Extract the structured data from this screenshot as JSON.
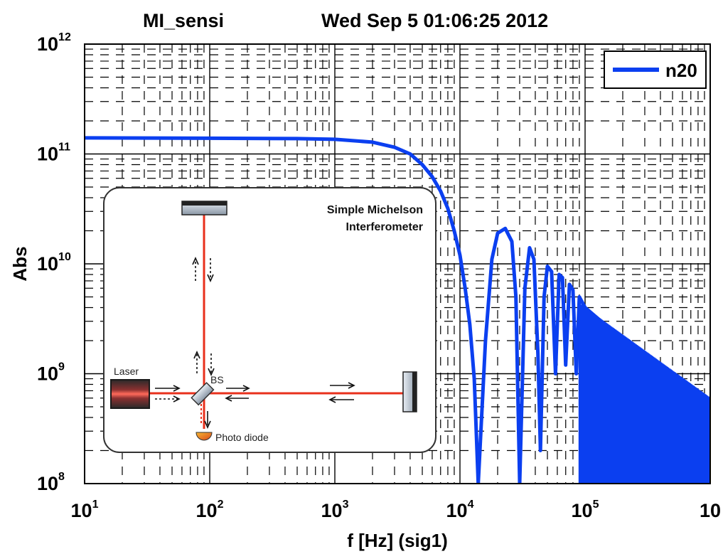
{
  "chart_data": {
    "type": "line",
    "title": "MI_sensi",
    "timestamp": "Wed Sep  5 01:06:25 2012",
    "xlabel": "f [Hz] (sig1)",
    "ylabel": "Abs",
    "xscale": "log",
    "yscale": "log",
    "xlim": [
      10,
      1000000
    ],
    "ylim": [
      100000000,
      1000000000000
    ],
    "grid": true,
    "x_ticks": [
      {
        "base": "10",
        "exp": "1"
      },
      {
        "base": "10",
        "exp": "2"
      },
      {
        "base": "10",
        "exp": "3"
      },
      {
        "base": "10",
        "exp": "4"
      },
      {
        "base": "10",
        "exp": "5"
      },
      {
        "base": "10",
        "exp": ""
      }
    ],
    "y_ticks": [
      {
        "base": "10",
        "exp": "8"
      },
      {
        "base": "10",
        "exp": "9"
      },
      {
        "base": "10",
        "exp": "10"
      },
      {
        "base": "10",
        "exp": "11"
      },
      {
        "base": "10",
        "exp": "12"
      }
    ],
    "legend": {
      "position": "top-right",
      "entries": [
        "n20"
      ]
    },
    "series": [
      {
        "name": "n20",
        "color": "#0b3ff0",
        "dc_level": 140000000000,
        "first_null_hz": 14000,
        "x": [
          10,
          100,
          500,
          1000,
          2000,
          3000,
          4000,
          5000,
          6000,
          7000,
          8000,
          9000,
          10000,
          11000,
          12000,
          13000,
          14000,
          16000,
          18000,
          20000,
          23000,
          26000,
          28000,
          30000,
          33000,
          36000,
          39000,
          42000,
          44000,
          47000,
          50000,
          54000,
          58000,
          62000,
          66000,
          70000,
          75000,
          80000,
          85000,
          90000,
          100000,
          150000,
          200000,
          300000,
          500000,
          1000000
        ],
        "y": [
          140000000000,
          139000000000,
          138000000000,
          136000000000,
          128000000000,
          115000000000,
          100000000000,
          80000000000,
          62000000000,
          46000000000,
          32000000000,
          20000000000,
          12000000000,
          6000000000,
          2800000000,
          900000000,
          100000000,
          2000000000,
          11000000000,
          19000000000,
          21000000000,
          16000000000,
          5000000000,
          100000000,
          6000000000,
          14000000000,
          11000000000,
          1500000000,
          200000000,
          5000000000,
          9500000000,
          8500000000,
          1000000000,
          8000000000,
          7500000000,
          1200000000,
          6500000000,
          5800000000,
          1000000000,
          5000000000,
          4000000000,
          2700000000,
          1900000000,
          1300000000,
          850000000,
          550000000
        ]
      }
    ],
    "inset": {
      "title_line1": "Simple Michelson",
      "title_line2": "Interferometer",
      "laser_label": "Laser",
      "bs_label": "BS",
      "pd_label": "Photo diode"
    }
  },
  "colors": {
    "curve": "#0b3ff0",
    "grid": "#000000",
    "beam": "#e8301c",
    "inset_border": "#333333"
  }
}
